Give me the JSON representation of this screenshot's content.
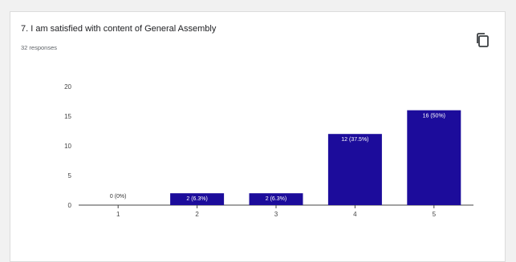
{
  "question": {
    "title": "7. I am satisfied with content of General Assembly",
    "responses": "32 responses"
  },
  "toolbar": {
    "copy_icon": "copy-icon"
  },
  "colors": {
    "bar": "#1c0c9b",
    "axis": "#444444",
    "tick_label": "#444444",
    "bar_label_inside": "#ffffff",
    "bar_label_outside": "#333333"
  },
  "chart_data": {
    "type": "bar",
    "title": "7. I am satisfied with content of General Assembly",
    "xlabel": "",
    "ylabel": "",
    "categories": [
      "1",
      "2",
      "3",
      "4",
      "5"
    ],
    "values": [
      0,
      2,
      2,
      12,
      16
    ],
    "data_labels": [
      "0 (0%)",
      "2 (6.3%)",
      "2 (6.3%)",
      "12 (37.5%)",
      "16 (50%)"
    ],
    "yticks": [
      0,
      5,
      10,
      15,
      20
    ],
    "ylim": [
      0,
      20
    ],
    "grid": false,
    "legend": "none"
  }
}
